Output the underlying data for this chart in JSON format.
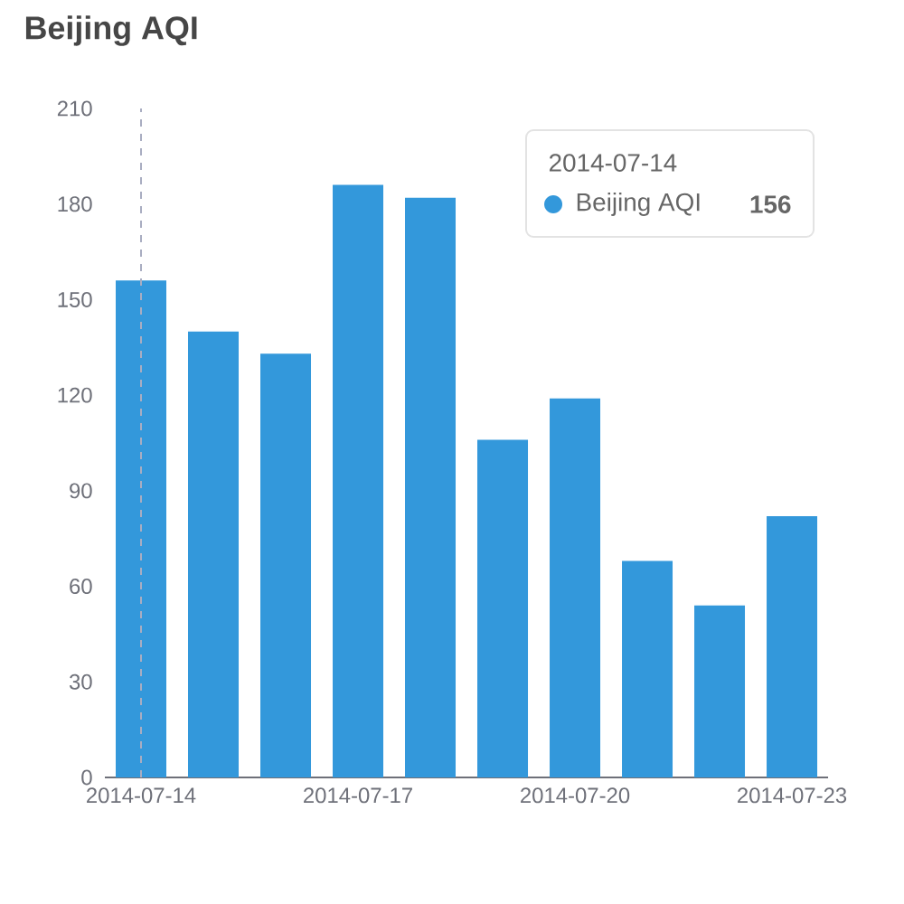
{
  "chart_data": {
    "type": "bar",
    "title": "Beijing AQI",
    "categories": [
      "2014-07-14",
      null,
      null,
      "2014-07-17",
      null,
      null,
      "2014-07-20",
      null,
      null,
      "2014-07-23"
    ],
    "series": [
      {
        "name": "Beijing AQI",
        "color": "#3398db",
        "values": [
          156,
          140,
          133,
          186,
          182,
          106,
          119,
          68,
          54,
          82
        ]
      }
    ],
    "ylim": [
      0,
      210
    ],
    "yticks": [
      0,
      30,
      60,
      90,
      120,
      150,
      180,
      210
    ],
    "legend": "top right",
    "ref_lines": [
      {
        "axis": "x",
        "value": "2014-07-14",
        "color": "#a9adc1",
        "line_style": "dashed"
      }
    ],
    "annotations": [
      "2014-07-14",
      "156"
    ]
  }
}
